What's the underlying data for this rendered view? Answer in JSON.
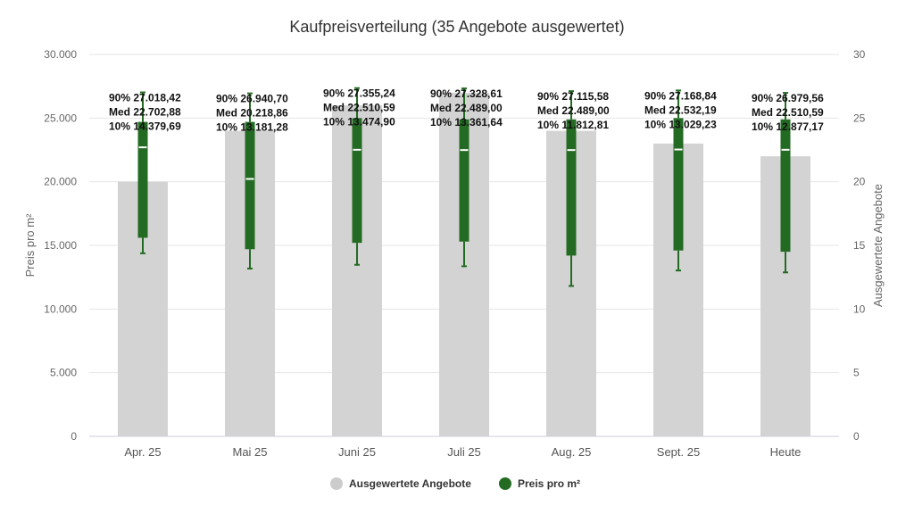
{
  "chart_data": {
    "type": "bar",
    "title": "Kaufpreisverteilung (35 Angebote ausgewertet)",
    "categories": [
      "Apr. 25",
      "Mai 25",
      "Juni 25",
      "Juli 25",
      "Aug. 25",
      "Sept. 25",
      "Heute"
    ],
    "y_left": {
      "label": "Preis pro m²",
      "range": [
        0,
        30000
      ],
      "ticks": [
        0,
        5000,
        10000,
        15000,
        20000,
        25000,
        30000
      ],
      "tick_labels": [
        "0",
        "5.000",
        "10.000",
        "15.000",
        "20.000",
        "25.000",
        "30.000"
      ]
    },
    "y_right": {
      "label": "Ausgewertete Angebote",
      "range": [
        0,
        30
      ],
      "ticks": [
        0,
        5,
        10,
        15,
        20,
        25,
        30
      ],
      "tick_labels": [
        "0",
        "5",
        "10",
        "15",
        "20",
        "25",
        "30"
      ]
    },
    "series": [
      {
        "name": "Ausgewertete Angebote",
        "type": "bar",
        "axis": "right",
        "color": "#d3d3d3",
        "values": [
          20,
          24,
          26,
          27,
          24,
          23,
          22
        ]
      },
      {
        "name": "Preis pro m²",
        "type": "boxplot",
        "axis": "left",
        "color": "#236b23",
        "median_color": "#ffffff",
        "points": [
          {
            "p90": 27018.42,
            "median": 22702.88,
            "p10": 14379.69,
            "q3": 24700,
            "q1": 15600,
            "labels": [
              "90% 27.018,42",
              "Med 22.702,88",
              "10% 14.379,69"
            ]
          },
          {
            "p90": 26940.7,
            "median": 20218.86,
            "p10": 13181.28,
            "q3": 24700,
            "q1": 14700,
            "labels": [
              "90% 26.940,70",
              "Med 20.218,86",
              "10% 13.181,28"
            ]
          },
          {
            "p90": 27355.24,
            "median": 22510.59,
            "p10": 13474.9,
            "q3": 25000,
            "q1": 15200,
            "labels": [
              "90% 27.355,24",
              "Med 22.510,59",
              "10% 13.474,90"
            ]
          },
          {
            "p90": 27328.61,
            "median": 22489.0,
            "p10": 13361.64,
            "q3": 24900,
            "q1": 15300,
            "labels": [
              "90% 27.328,61",
              "Med 22.489,00",
              "10% 13.361,64"
            ]
          },
          {
            "p90": 27115.58,
            "median": 22489.0,
            "p10": 11812.81,
            "q3": 24900,
            "q1": 14200,
            "labels": [
              "90% 27.115,58",
              "Med 22.489,00",
              "10% 11.812,81"
            ]
          },
          {
            "p90": 27168.84,
            "median": 22532.19,
            "p10": 13029.23,
            "q3": 25000,
            "q1": 14600,
            "labels": [
              "90% 27.168,84",
              "Med 22.532,19",
              "10% 13.029,23"
            ]
          },
          {
            "p90": 26979.56,
            "median": 22510.59,
            "p10": 12877.17,
            "q3": 24900,
            "q1": 14500,
            "labels": [
              "90% 26.979,56",
              "Med 22.510,59",
              "10% 12.877,17"
            ]
          }
        ]
      }
    ],
    "grid": true,
    "legend": {
      "position": "bottom-center",
      "items": [
        {
          "label": "Ausgewertete Angebote",
          "color": "#cccccc"
        },
        {
          "label": "Preis pro m²",
          "color": "#236b23"
        }
      ]
    }
  }
}
